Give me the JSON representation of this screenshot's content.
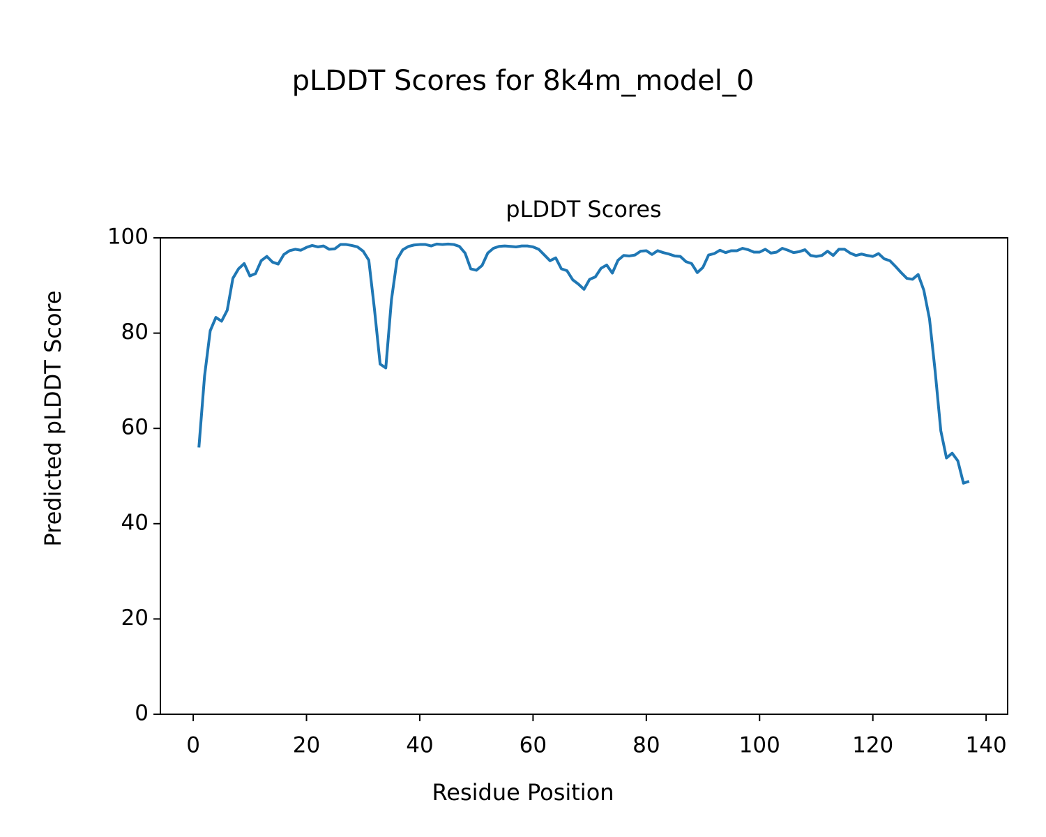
{
  "chart_data": {
    "type": "line",
    "title": "pLDDT Scores for 8k4m_model_0",
    "subtitle": "pLDDT Scores",
    "xlabel": "Residue Position",
    "ylabel": "Predicted pLDDT Score",
    "color": "#1f77b4",
    "x": [
      1,
      2,
      3,
      4,
      5,
      6,
      7,
      8,
      9,
      10,
      11,
      12,
      13,
      14,
      15,
      16,
      17,
      18,
      19,
      20,
      21,
      22,
      23,
      24,
      25,
      26,
      27,
      28,
      29,
      30,
      31,
      32,
      33,
      34,
      35,
      36,
      37,
      38,
      39,
      40,
      41,
      42,
      43,
      44,
      45,
      46,
      47,
      48,
      49,
      50,
      51,
      52,
      53,
      54,
      55,
      56,
      57,
      58,
      59,
      60,
      61,
      62,
      63,
      64,
      65,
      66,
      67,
      68,
      69,
      70,
      71,
      72,
      73,
      74,
      75,
      76,
      77,
      78,
      79,
      80,
      81,
      82,
      83,
      84,
      85,
      86,
      87,
      88,
      89,
      90,
      91,
      92,
      93,
      94,
      95,
      96,
      97,
      98,
      99,
      100,
      101,
      102,
      103,
      104,
      105,
      106,
      107,
      108,
      109,
      110,
      111,
      112,
      113,
      114,
      115,
      116,
      117,
      118,
      119,
      120,
      121,
      122,
      123,
      124,
      125,
      126,
      127,
      128,
      129,
      130,
      131,
      132,
      133,
      134,
      135,
      136,
      137
    ],
    "values": [
      56,
      71,
      80.5,
      83.3,
      82.5,
      84.8,
      91.5,
      93.5,
      94.6,
      92,
      92.5,
      95.2,
      96.1,
      94.9,
      94.5,
      96.5,
      97.3,
      97.6,
      97.4,
      98,
      98.4,
      98.1,
      98.3,
      97.6,
      97.7,
      98.6,
      98.6,
      98.4,
      98.1,
      97.2,
      95.3,
      85,
      73.5,
      72.7,
      87,
      95.5,
      97.5,
      98.2,
      98.5,
      98.6,
      98.6,
      98.3,
      98.7,
      98.6,
      98.7,
      98.6,
      98.2,
      96.8,
      93.5,
      93.2,
      94.2,
      96.8,
      97.8,
      98.2,
      98.3,
      98.2,
      98.1,
      98.3,
      98.3,
      98.1,
      97.6,
      96.4,
      95.2,
      95.8,
      93.5,
      93.1,
      91.2,
      90.3,
      89.2,
      91.3,
      91.8,
      93.6,
      94.3,
      92.6,
      95.3,
      96.3,
      96.2,
      96.4,
      97.2,
      97.3,
      96.5,
      97.3,
      96.9,
      96.6,
      96.2,
      96.1,
      95,
      94.6,
      92.7,
      93.8,
      96.4,
      96.7,
      97.4,
      96.9,
      97.3,
      97.3,
      97.8,
      97.5,
      97,
      97,
      97.6,
      96.8,
      97,
      97.8,
      97.4,
      96.9,
      97.1,
      97.5,
      96.3,
      96.1,
      96.3,
      97.2,
      96.3,
      97.6,
      97.6,
      96.8,
      96.3,
      96.6,
      96.3,
      96.1,
      96.7,
      95.6,
      95.2,
      94,
      92.7,
      91.5,
      91.3,
      92.3,
      89,
      83,
      72,
      59.5,
      53.8,
      54.8,
      53.2,
      48.5,
      48.9
    ],
    "xlim": [
      -5.8,
      143.8
    ],
    "xticks": [
      0,
      20,
      40,
      60,
      80,
      100,
      120,
      140
    ],
    "ylim": [
      0,
      100
    ],
    "yticks": [
      0,
      20,
      40,
      60,
      80,
      100
    ],
    "grid": false
  }
}
